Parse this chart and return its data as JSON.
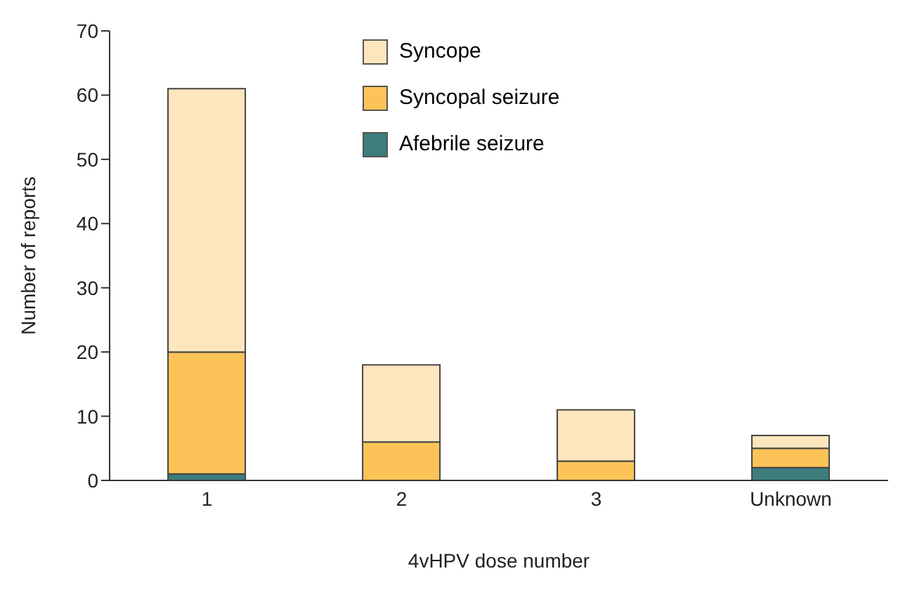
{
  "chart_data": {
    "type": "bar",
    "stacked": true,
    "xlabel": "4vHPV dose number",
    "ylabel": "Number of reports",
    "categories": [
      "1",
      "2",
      "3",
      "Unknown"
    ],
    "series": [
      {
        "name": "Afebrile seizure",
        "color": "#3d7d7d",
        "values": [
          1,
          0,
          0,
          2
        ]
      },
      {
        "name": "Syncopal seizure",
        "color": "#fcc458",
        "values": [
          19,
          6,
          3,
          3
        ]
      },
      {
        "name": "Syncope",
        "color": "#fde6be",
        "values": [
          41,
          12,
          8,
          2
        ]
      }
    ],
    "ylim": [
      0,
      70
    ],
    "yticks": [
      0,
      10,
      20,
      30,
      40,
      50,
      60,
      70
    ],
    "grid": false,
    "legend": "top"
  }
}
